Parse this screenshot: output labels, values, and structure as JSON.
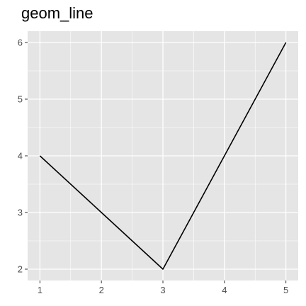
{
  "chart_data": {
    "type": "line",
    "title": "geom_line",
    "xlabel": "",
    "ylabel": "",
    "x": [
      1,
      2,
      3,
      4,
      5
    ],
    "y": [
      4,
      3,
      2,
      4,
      6
    ],
    "xlim": [
      0.8,
      5.2
    ],
    "ylim": [
      1.8,
      6.2
    ],
    "xticks": [
      1,
      2,
      3,
      4,
      5
    ],
    "yticks": [
      2,
      3,
      4,
      5,
      6
    ],
    "grid": true,
    "line_color": "#000000",
    "panel_background": "#e5e5e5",
    "grid_color": "#ffffff"
  }
}
